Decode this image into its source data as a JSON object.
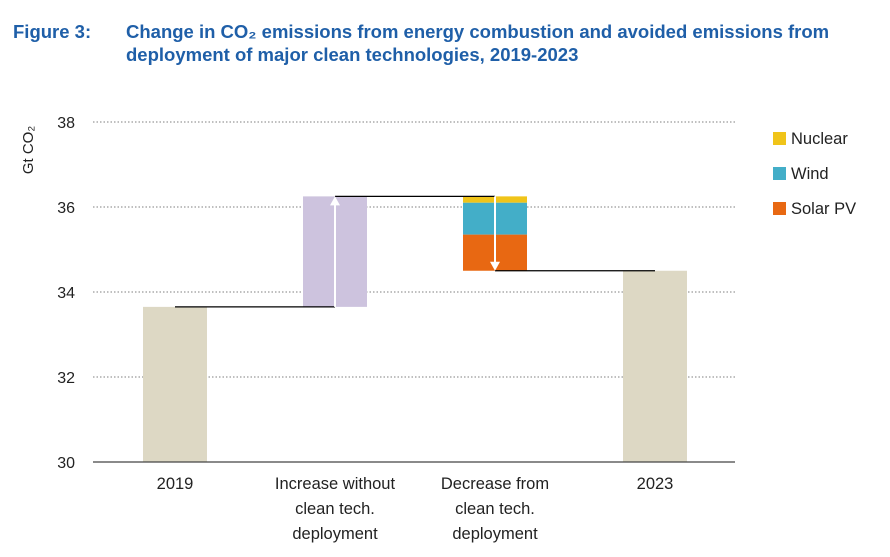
{
  "figure": {
    "number": "Figure 3:",
    "title": "Change in CO₂ emissions from energy combustion and avoided emissions from deployment of major clean technologies, 2019-2023"
  },
  "chart_data": {
    "type": "bar",
    "subtype": "waterfall",
    "ylabel": "Gt CO₂",
    "ylim": [
      30,
      38
    ],
    "yticks": [
      30,
      32,
      34,
      36,
      38
    ],
    "grid": true,
    "legend_position": "top-right",
    "categories": [
      "2019",
      "Increase without clean tech. deployment",
      "Decrease from clean tech. deployment",
      "2023"
    ],
    "category_lines": [
      [
        "2019"
      ],
      [
        "Increase without",
        "clean tech.",
        "deployment"
      ],
      [
        "Decrease from",
        "clean tech.",
        "deployment"
      ],
      [
        "2023"
      ]
    ],
    "totals": {
      "2019": 33.65,
      "2023": 34.5
    },
    "increase": {
      "from": 33.65,
      "to": 36.25
    },
    "decrease": {
      "from": 36.25,
      "to": 34.5,
      "series": [
        {
          "name": "Nuclear",
          "value": 0.15,
          "color": "#f0c419"
        },
        {
          "name": "Wind",
          "value": 0.75,
          "color": "#43aec8"
        },
        {
          "name": "Solar PV",
          "value": 0.85,
          "color": "#e86812"
        }
      ]
    },
    "colors": {
      "total": "#ddd8c4",
      "increase": "#cdc3de",
      "connector": "#000000",
      "grid": "#999999",
      "arrow": "#ffffff"
    }
  }
}
